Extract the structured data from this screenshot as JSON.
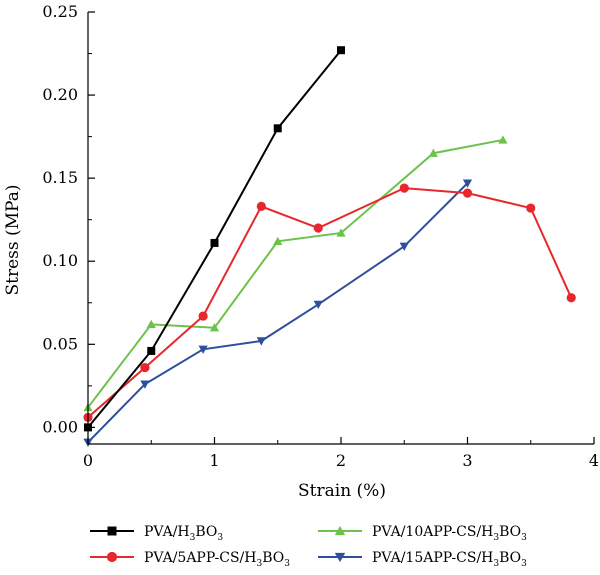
{
  "chart_data": {
    "type": "line",
    "xlabel": "Strain (%)",
    "ylabel": "Stress (MPa)",
    "xlim": [
      0,
      4
    ],
    "ylim": [
      -0.01,
      0.25
    ],
    "x_ticks": [
      0,
      1,
      2,
      3,
      4
    ],
    "x_tick_labels": [
      "0",
      "1",
      "2",
      "3",
      "4"
    ],
    "y_ticks": [
      0,
      0.05,
      0.1,
      0.15,
      0.2,
      0.25
    ],
    "y_tick_labels": [
      "0.00",
      "0.05",
      "0.10",
      "0.15",
      "0.20",
      "0.25"
    ],
    "grid": false,
    "legend_position": "bottom",
    "series": [
      {
        "name": "PVA/H3BO3",
        "legend_base": "PVA/H",
        "legend_tail": "BO",
        "color": "#000000",
        "marker": "square",
        "points": [
          [
            0,
            0.0
          ],
          [
            0.5,
            0.046
          ],
          [
            1.0,
            0.111
          ],
          [
            1.5,
            0.18
          ],
          [
            2.0,
            0.227
          ]
        ]
      },
      {
        "name": "PVA/5APP-CS/H3BO3",
        "legend_base": "PVA/5APP-CS/H",
        "legend_tail": "BO",
        "color": "#e8272d",
        "marker": "circle",
        "points": [
          [
            0,
            0.006
          ],
          [
            0.45,
            0.036
          ],
          [
            0.91,
            0.067
          ],
          [
            1.37,
            0.133
          ],
          [
            1.82,
            0.12
          ],
          [
            2.5,
            0.144
          ],
          [
            3.0,
            0.141
          ],
          [
            3.5,
            0.132
          ],
          [
            3.82,
            0.078
          ]
        ]
      },
      {
        "name": "PVA/10APP-CS/H3BO3",
        "legend_base": "PVA/10APP-CS/H",
        "legend_tail": "BO",
        "color": "#6dc24b",
        "marker": "triangle-up",
        "points": [
          [
            0,
            0.012
          ],
          [
            0.5,
            0.062
          ],
          [
            1.0,
            0.06
          ],
          [
            1.5,
            0.112
          ],
          [
            2.0,
            0.117
          ],
          [
            2.73,
            0.165
          ],
          [
            3.28,
            0.173
          ]
        ]
      },
      {
        "name": "PVA/15APP-CS/H3BO3",
        "legend_base": "PVA/15APP-CS/H",
        "legend_tail": "BO",
        "color": "#2e4f9e",
        "marker": "triangle-down",
        "points": [
          [
            0,
            -0.009
          ],
          [
            0.45,
            0.026
          ],
          [
            0.91,
            0.047
          ],
          [
            1.37,
            0.052
          ],
          [
            1.82,
            0.074
          ],
          [
            2.5,
            0.109
          ],
          [
            3.0,
            0.147
          ]
        ]
      }
    ],
    "subscript_digit": "3"
  }
}
